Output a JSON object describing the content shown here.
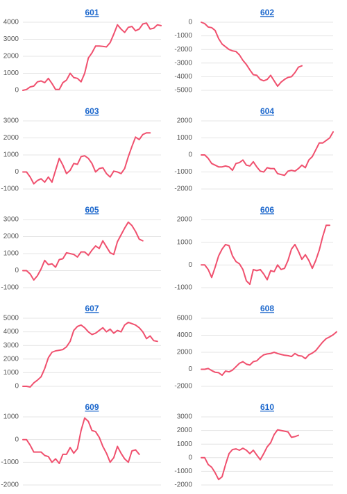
{
  "chart_data": [
    {
      "type": "line",
      "title": "601",
      "color": "#f0506e",
      "ylim": [
        0,
        4000
      ],
      "yticks": [
        0,
        1000,
        2000,
        3000,
        4000
      ],
      "values": [
        0,
        50,
        200,
        250,
        500,
        550,
        450,
        700,
        400,
        50,
        50,
        450,
        600,
        1000,
        750,
        700,
        500,
        1000,
        1900,
        2200,
        2600,
        2600,
        2580,
        2550,
        2800,
        3300,
        3850,
        3600,
        3400,
        3700,
        3750,
        3500,
        3600,
        3900,
        3950,
        3600,
        3650,
        3850,
        3800
      ]
    },
    {
      "type": "line",
      "title": "602",
      "color": "#f0506e",
      "ylim": [
        -5000,
        0
      ],
      "yticks": [
        0,
        -1000,
        -2000,
        -3000,
        -4000,
        -5000
      ],
      "values": [
        0,
        -100,
        -350,
        -400,
        -600,
        -1200,
        -1600,
        -1800,
        -2000,
        -2100,
        -2150,
        -2400,
        -2800,
        -3100,
        -3500,
        -3850,
        -3900,
        -4200,
        -4300,
        -4200,
        -3900,
        -4300,
        -4700,
        -4400,
        -4200,
        -4050,
        -4000,
        -3700,
        -3300,
        -3200
      ]
    },
    {
      "type": "line",
      "title": "603",
      "color": "#f0506e",
      "ylim": [
        -1000,
        3000
      ],
      "yticks": [
        -1000,
        0,
        1000,
        2000,
        3000
      ],
      "values": [
        0,
        0,
        -300,
        -700,
        -500,
        -400,
        -600,
        -300,
        -600,
        100,
        800,
        400,
        -100,
        100,
        500,
        450,
        900,
        950,
        800,
        500,
        0,
        200,
        250,
        -100,
        -300,
        50,
        0,
        -100,
        200,
        900,
        1500,
        2050,
        1900,
        2200,
        2300,
        2300
      ]
    },
    {
      "type": "line",
      "title": "604",
      "color": "#f0506e",
      "ylim": [
        -2000,
        2000
      ],
      "yticks": [
        -2000,
        -1000,
        0,
        1000,
        2000
      ],
      "values": [
        0,
        0,
        -200,
        -500,
        -600,
        -700,
        -700,
        -650,
        -700,
        -900,
        -500,
        -450,
        -300,
        -600,
        -650,
        -400,
        -700,
        -950,
        -1000,
        -750,
        -800,
        -800,
        -1100,
        -1150,
        -1200,
        -950,
        -900,
        -950,
        -800,
        -600,
        -750,
        -300,
        -100,
        300,
        700,
        700,
        850,
        1000,
        1350
      ]
    },
    {
      "type": "line",
      "title": "605",
      "color": "#f0506e",
      "ylim": [
        -1000,
        3000
      ],
      "yticks": [
        -1000,
        0,
        1000,
        2000,
        3000
      ],
      "values": [
        0,
        0,
        -200,
        -550,
        -300,
        100,
        600,
        350,
        400,
        200,
        650,
        700,
        1050,
        1000,
        950,
        800,
        1100,
        1100,
        900,
        1200,
        1450,
        1300,
        1750,
        1400,
        1050,
        950,
        1700,
        2100,
        2500,
        2850,
        2650,
        2300,
        1850,
        1750
      ]
    },
    {
      "type": "line",
      "title": "606",
      "color": "#f0506e",
      "ylim": [
        -1000,
        2000
      ],
      "yticks": [
        -1000,
        0,
        1000,
        2000
      ],
      "values": [
        0,
        0,
        -200,
        -550,
        -100,
        400,
        700,
        900,
        850,
        400,
        150,
        50,
        -200,
        -700,
        -850,
        -200,
        -250,
        -200,
        -400,
        -650,
        -250,
        -300,
        0,
        -200,
        -150,
        200,
        700,
        900,
        600,
        250,
        450,
        200,
        -150,
        200,
        650,
        1250,
        1750,
        1750
      ]
    },
    {
      "type": "line",
      "title": "607",
      "color": "#f0506e",
      "ylim": [
        0,
        5000
      ],
      "yticks": [
        0,
        1000,
        2000,
        3000,
        4000,
        5000
      ],
      "values": [
        0,
        0,
        -50,
        250,
        450,
        700,
        1300,
        2100,
        2500,
        2600,
        2650,
        2700,
        2900,
        3300,
        4100,
        4400,
        4500,
        4300,
        4000,
        3800,
        3900,
        4100,
        4300,
        4000,
        4200,
        3900,
        4100,
        4000,
        4500,
        4700,
        4600,
        4500,
        4300,
        4000,
        3500,
        3700,
        3350,
        3300
      ]
    },
    {
      "type": "line",
      "title": "608",
      "color": "#f0506e",
      "ylim": [
        -2000,
        6000
      ],
      "yticks": [
        -2000,
        0,
        2000,
        4000,
        6000
      ],
      "values": [
        0,
        0,
        100,
        -150,
        -350,
        -400,
        -700,
        -200,
        -300,
        -100,
        300,
        700,
        900,
        600,
        500,
        900,
        1000,
        1400,
        1700,
        1800,
        1850,
        2000,
        1850,
        1750,
        1650,
        1600,
        1500,
        1850,
        1600,
        1550,
        1250,
        1700,
        1900,
        2200,
        2700,
        3200,
        3600,
        3800,
        4050,
        4400
      ]
    },
    {
      "type": "line",
      "title": "609",
      "color": "#f0506e",
      "ylim": [
        -2000,
        1000
      ],
      "yticks": [
        -2000,
        -1000,
        0,
        1000
      ],
      "values": [
        0,
        0,
        -250,
        -550,
        -550,
        -550,
        -700,
        -750,
        -1000,
        -850,
        -1050,
        -650,
        -650,
        -350,
        -600,
        -400,
        400,
        950,
        800,
        400,
        350,
        100,
        -300,
        -600,
        -1000,
        -800,
        -300,
        -600,
        -850,
        -1000,
        -500,
        -450,
        -650
      ]
    },
    {
      "type": "line",
      "title": "610",
      "color": "#f0506e",
      "ylim": [
        -2000,
        3000
      ],
      "yticks": [
        -2000,
        -1000,
        0,
        1000,
        2000,
        3000
      ],
      "values": [
        0,
        0,
        -500,
        -700,
        -1100,
        -1600,
        -1400,
        -500,
        300,
        600,
        650,
        550,
        700,
        550,
        300,
        550,
        200,
        -150,
        300,
        800,
        1100,
        1700,
        2050,
        2000,
        1950,
        1900,
        1500,
        1550,
        1650
      ]
    }
  ]
}
